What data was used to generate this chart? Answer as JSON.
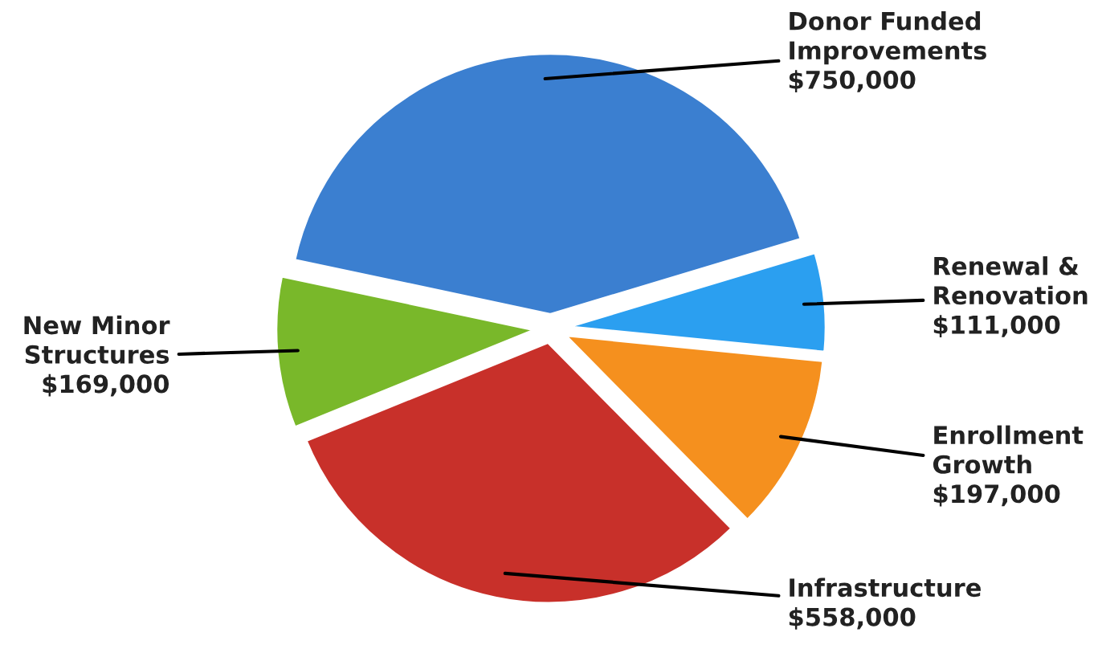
{
  "chart_data": {
    "type": "pie",
    "categories": [
      "Donor Funded\nImprovements",
      "Renewal &\nRenovation",
      "Enrollment\nGrowth",
      "Infrastructure",
      "New Minor\nStructures"
    ],
    "values": [
      750000,
      111000,
      197000,
      558000,
      169000
    ],
    "value_labels": [
      "$750,000",
      "$111,000",
      "$197,000",
      "$558,000",
      "$169,000"
    ],
    "colors": [
      "#3b7fd0",
      "#2b9ff0",
      "#f5901e",
      "#c8302a",
      "#79b82a"
    ]
  }
}
